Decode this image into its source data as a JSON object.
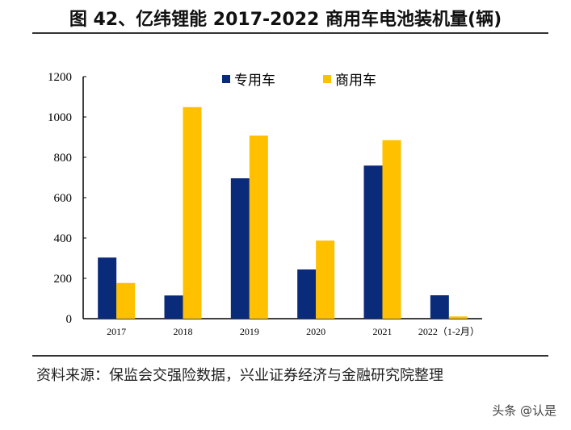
{
  "title": "图 42、亿纬锂能 2017-2022 商用车电池装机量(辆)",
  "source": "资料来源：保监会交强险数据，兴业证券经济与金融研究院整理",
  "watermark": "头条 @认是",
  "chart_data": {
    "type": "bar",
    "categories": [
      "2017",
      "2018",
      "2019",
      "2020",
      "2021",
      "2022（1-2月）"
    ],
    "series": [
      {
        "name": "专用车",
        "color": "#0a2a7a",
        "values": [
          303,
          115,
          696,
          244,
          759,
          116
        ]
      },
      {
        "name": "商用车",
        "color": "#ffc000",
        "values": [
          177,
          1049,
          908,
          387,
          885,
          11
        ]
      }
    ],
    "ylim": [
      0,
      1200
    ],
    "yticks": [
      0,
      200,
      400,
      600,
      800,
      1000,
      1200
    ],
    "grid": false,
    "legend": "top"
  }
}
